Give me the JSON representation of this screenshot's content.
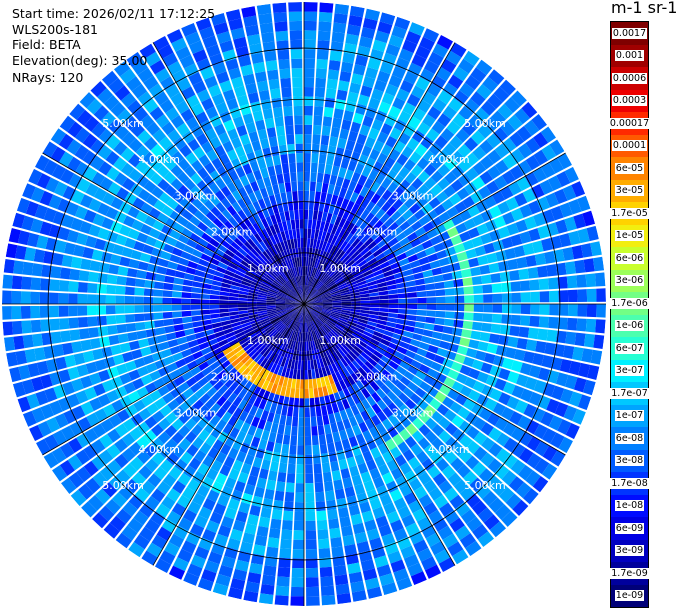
{
  "header": {
    "start_time": "Start time: 2026/02/11 17:12:25",
    "instrument": "WLS200s-181",
    "field": "Field: BETA",
    "elevation": "Elevation(deg): 35.00",
    "nrays": "NRays: 120"
  },
  "colorbar": {
    "title": "m-1 sr-1",
    "labels": [
      "0.0017",
      "0.001",
      "0.0006",
      "0.0003",
      "0.00017",
      "0.0001",
      "6e-05",
      "3e-05",
      "1.7e-05",
      "1e-05",
      "6e-06",
      "3e-06",
      "1.7e-06",
      "1e-06",
      "6e-07",
      "3e-07",
      "1.7e-07",
      "1e-07",
      "6e-08",
      "3e-08",
      "1.7e-08",
      "1e-08",
      "6e-09",
      "3e-09",
      "1.7e-09",
      "1e-09"
    ],
    "colors": [
      "#7f0000",
      "#a00000",
      "#cc0000",
      "#ee0000",
      "#ff2a00",
      "#ff5a00",
      "#ff8400",
      "#ffac00",
      "#ffd200",
      "#f2ee10",
      "#c9ff2d",
      "#9cff5a",
      "#72ff85",
      "#4cffae",
      "#27ffd3",
      "#00f0ff",
      "#00c8ff",
      "#00a4ff",
      "#0080ff",
      "#005cff",
      "#0034ff",
      "#000cff",
      "#0000e4",
      "#0000c0",
      "#00009c",
      "#000078"
    ]
  },
  "chart_data": {
    "type": "heatmap",
    "projection": "polar PPI",
    "field": "BETA",
    "elevation_deg": 35.0,
    "nrays": 120,
    "max_range_km": 5.9,
    "range_rings_km": [
      1,
      2,
      3,
      4,
      5
    ],
    "ring_labels": [
      "1.00km",
      "2.00km",
      "3.00km",
      "4.00km",
      "5.00km"
    ],
    "ring_label_azimuths_deg": [
      315,
      45,
      225,
      135
    ],
    "spoke_azimuths_deg": [
      0,
      30,
      60,
      90,
      120,
      150,
      180,
      210,
      240,
      270,
      300,
      330
    ],
    "range_profile": [
      {
        "range_km": 0.3,
        "value": 1e-09
      },
      {
        "range_km": 1.0,
        "value": 3e-09
      },
      {
        "range_km": 1.8,
        "value": 1e-08
      },
      {
        "range_km": 2.4,
        "value": 3e-08
      },
      {
        "range_km": 3.2,
        "value": 6e-08
      },
      {
        "range_km": 4.0,
        "value": 1e-07
      },
      {
        "range_km": 5.0,
        "value": 6e-08
      },
      {
        "range_km": 5.9,
        "value": 3e-08
      }
    ],
    "enhanced_arcs": [
      {
        "range_km": 1.65,
        "az_start_deg": 160,
        "az_end_deg": 240,
        "value": 3e-05
      },
      {
        "range_km": 3.2,
        "az_start_deg": 60,
        "az_end_deg": 150,
        "value": 1e-06
      }
    ]
  }
}
